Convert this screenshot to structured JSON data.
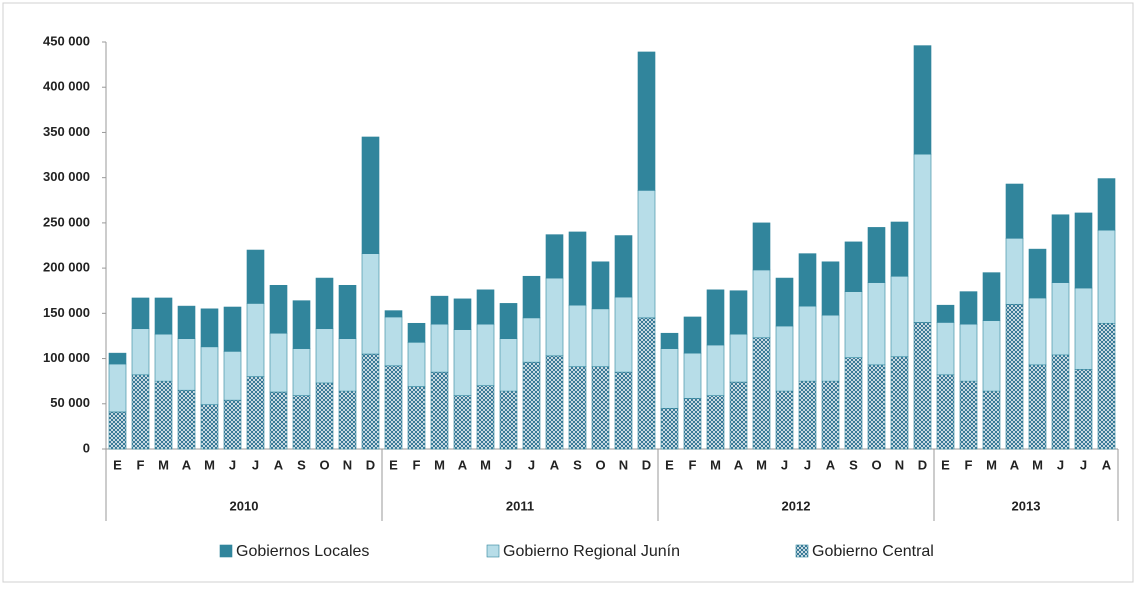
{
  "chart_data": {
    "type": "stacked_bar",
    "groups": [
      {
        "name": "2010",
        "categories": [
          "E",
          "F",
          "M",
          "A",
          "M",
          "J",
          "J",
          "A",
          "S",
          "O",
          "N",
          "D"
        ]
      },
      {
        "name": "2011",
        "categories": [
          "E",
          "F",
          "M",
          "A",
          "M",
          "J",
          "J",
          "A",
          "S",
          "O",
          "N",
          "D"
        ]
      },
      {
        "name": "2012",
        "categories": [
          "E",
          "F",
          "M",
          "A",
          "M",
          "J",
          "J",
          "A",
          "S",
          "O",
          "N",
          "D"
        ]
      },
      {
        "name": "2013",
        "categories": [
          "E",
          "F",
          "M",
          "A",
          "M",
          "J",
          "J",
          "A"
        ]
      }
    ],
    "series": [
      {
        "name": "Gobiernos Locales",
        "color": "#31859c",
        "values": [
          12000,
          34000,
          40000,
          36000,
          42000,
          49000,
          59000,
          53000,
          53000,
          56000,
          59000,
          129000,
          7000,
          21000,
          31000,
          34000,
          38000,
          39000,
          46000,
          48000,
          81000,
          52000,
          68000,
          153000,
          17000,
          40000,
          61000,
          48000,
          52000,
          53000,
          58000,
          59000,
          55000,
          61000,
          60000,
          120000,
          19000,
          36000,
          53000,
          60000,
          54000,
          75000,
          83000,
          57000
        ]
      },
      {
        "name": "Gobierno Regional Junín",
        "color": "#b7dde8",
        "values": [
          53000,
          51000,
          52000,
          57000,
          64000,
          54000,
          81000,
          65000,
          52000,
          60000,
          58000,
          111000,
          54000,
          49000,
          53000,
          73000,
          68000,
          58000,
          49000,
          86000,
          68000,
          64000,
          83000,
          141000,
          66000,
          50000,
          56000,
          53000,
          75000,
          72000,
          83000,
          73000,
          73000,
          91000,
          89000,
          186000,
          58000,
          63000,
          78000,
          73000,
          74000,
          80000,
          90000,
          103000
        ]
      },
      {
        "name": "Gobierno Central",
        "color": "#2a6f8f",
        "pattern": "crosshatch",
        "values": [
          41000,
          82000,
          75000,
          65000,
          49000,
          54000,
          80000,
          63000,
          59000,
          73000,
          64000,
          105000,
          92000,
          69000,
          85000,
          59000,
          70000,
          64000,
          96000,
          103000,
          91000,
          91000,
          85000,
          145000,
          45000,
          56000,
          59000,
          74000,
          123000,
          64000,
          75000,
          75000,
          101000,
          93000,
          102000,
          140000,
          82000,
          75000,
          64000,
          160000,
          93000,
          104000,
          88000,
          139000
        ]
      }
    ],
    "ylim": [
      0,
      450000
    ],
    "yticks": [
      0,
      {
        "value": 50000,
        "label": "50 000"
      },
      {
        "value": 100000,
        "label": "100 000"
      },
      {
        "value": 150000,
        "label": "150 000"
      },
      {
        "value": 200000,
        "label": "200 000"
      },
      {
        "value": 250000,
        "label": "250 000"
      },
      {
        "value": 300000,
        "label": "300 000"
      },
      {
        "value": 350000,
        "label": "350 000"
      },
      {
        "value": 400000,
        "label": "400 000"
      },
      {
        "value": 450000,
        "label": "450 000"
      }
    ],
    "grid": false
  }
}
